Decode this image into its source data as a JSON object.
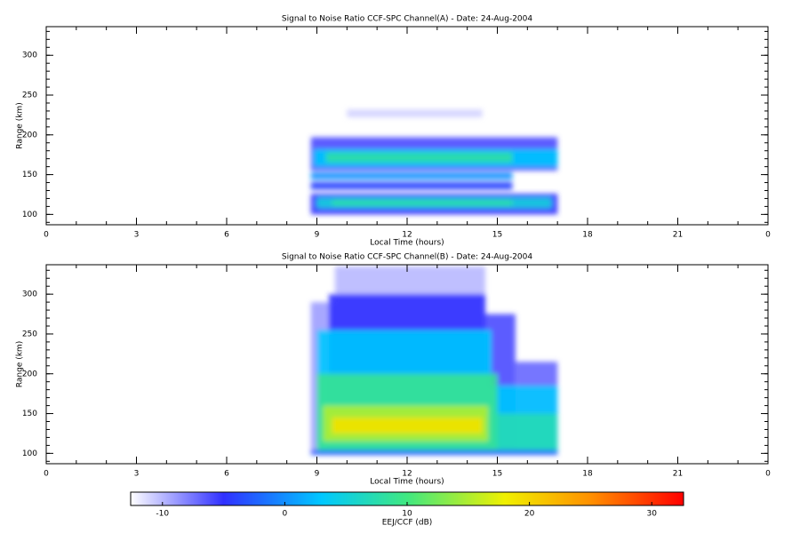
{
  "chart_data": [
    {
      "type": "heatmap",
      "title": "Signal to Noise Ratio CCF-SPC Channel(A) - Date: 24-Aug-2004",
      "x_label": "Local Time (hours)",
      "y_label": "Range (km)",
      "xlim": [
        0,
        24
      ],
      "ylim": [
        87,
        336
      ],
      "xticks": [
        0,
        3,
        6,
        9,
        12,
        15,
        18,
        21,
        {
          "value": 24,
          "label": "0"
        }
      ],
      "yticks": [
        100,
        150,
        200,
        250,
        300
      ],
      "regions": [
        {
          "x": [
            8.8,
            17
          ],
          "y": [
            100,
            126
          ],
          "value": -5
        },
        {
          "x": [
            9,
            16.8
          ],
          "y": [
            108,
            121
          ],
          "value": 5
        },
        {
          "x": [
            9.5,
            15.5
          ],
          "y": [
            111,
            118
          ],
          "value": 8
        },
        {
          "x": [
            8.8,
            15.5
          ],
          "y": [
            131,
            141
          ],
          "value": -4
        },
        {
          "x": [
            8.8,
            15.5
          ],
          "y": [
            144,
            153
          ],
          "value": 0
        },
        {
          "x": [
            8.8,
            17
          ],
          "y": [
            155,
            197
          ],
          "value": -6
        },
        {
          "x": [
            8.9,
            17
          ],
          "y": [
            160,
            182
          ],
          "value": 3
        },
        {
          "x": [
            9.3,
            15.5
          ],
          "y": [
            165,
            178
          ],
          "value": 8
        },
        {
          "x": [
            10,
            14.5
          ],
          "y": [
            222,
            232
          ],
          "value": -11
        }
      ]
    },
    {
      "type": "heatmap",
      "title": "Signal to Noise Ratio CCF-SPC Channel(B) - Date: 24-Aug-2004",
      "x_label": "Local Time (hours)",
      "y_label": "Range (km)",
      "xlim": [
        0,
        24
      ],
      "ylim": [
        87,
        337
      ],
      "xticks": [
        0,
        3,
        6,
        9,
        12,
        15,
        18,
        21,
        {
          "value": 24,
          "label": "0"
        }
      ],
      "yticks": [
        100,
        150,
        200,
        250,
        300
      ],
      "regions": [
        {
          "x": [
            8.8,
            9.6
          ],
          "y": [
            100,
            290
          ],
          "value": -9
        },
        {
          "x": [
            9.6,
            14.6
          ],
          "y": [
            100,
            335
          ],
          "value": -10
        },
        {
          "x": [
            9.4,
            14.6
          ],
          "y": [
            100,
            300
          ],
          "value": -5
        },
        {
          "x": [
            14.6,
            15.6
          ],
          "y": [
            100,
            275
          ],
          "value": -6
        },
        {
          "x": [
            15.6,
            17
          ],
          "y": [
            100,
            215
          ],
          "value": -7
        },
        {
          "x": [
            9,
            14.8
          ],
          "y": [
            100,
            255
          ],
          "value": 3
        },
        {
          "x": [
            14.8,
            17
          ],
          "y": [
            100,
            185
          ],
          "value": 3
        },
        {
          "x": [
            9,
            15
          ],
          "y": [
            102,
            200
          ],
          "value": 9
        },
        {
          "x": [
            15,
            17
          ],
          "y": [
            102,
            150
          ],
          "value": 7
        },
        {
          "x": [
            9.2,
            14.7
          ],
          "y": [
            115,
            160
          ],
          "value": 15
        },
        {
          "x": [
            9.5,
            14.5
          ],
          "y": [
            125,
            145
          ],
          "value": 19
        },
        {
          "x": [
            8.8,
            17
          ],
          "y": [
            98,
            104
          ],
          "value": -3
        }
      ]
    }
  ],
  "colorbar": {
    "label": "EEJ/CCF (dB)",
    "lim": [
      -12.6,
      32.6
    ],
    "ticks": [
      -10,
      0,
      10,
      20,
      30
    ],
    "colormap": [
      {
        "value": -12.6,
        "color": "#ffffff"
      },
      {
        "value": -5,
        "color": "#3030ff"
      },
      {
        "value": 3,
        "color": "#00c8ff"
      },
      {
        "value": 10,
        "color": "#40e880"
      },
      {
        "value": 18,
        "color": "#f0f000"
      },
      {
        "value": 25,
        "color": "#ff9000"
      },
      {
        "value": 32.6,
        "color": "#ff0000"
      }
    ]
  }
}
